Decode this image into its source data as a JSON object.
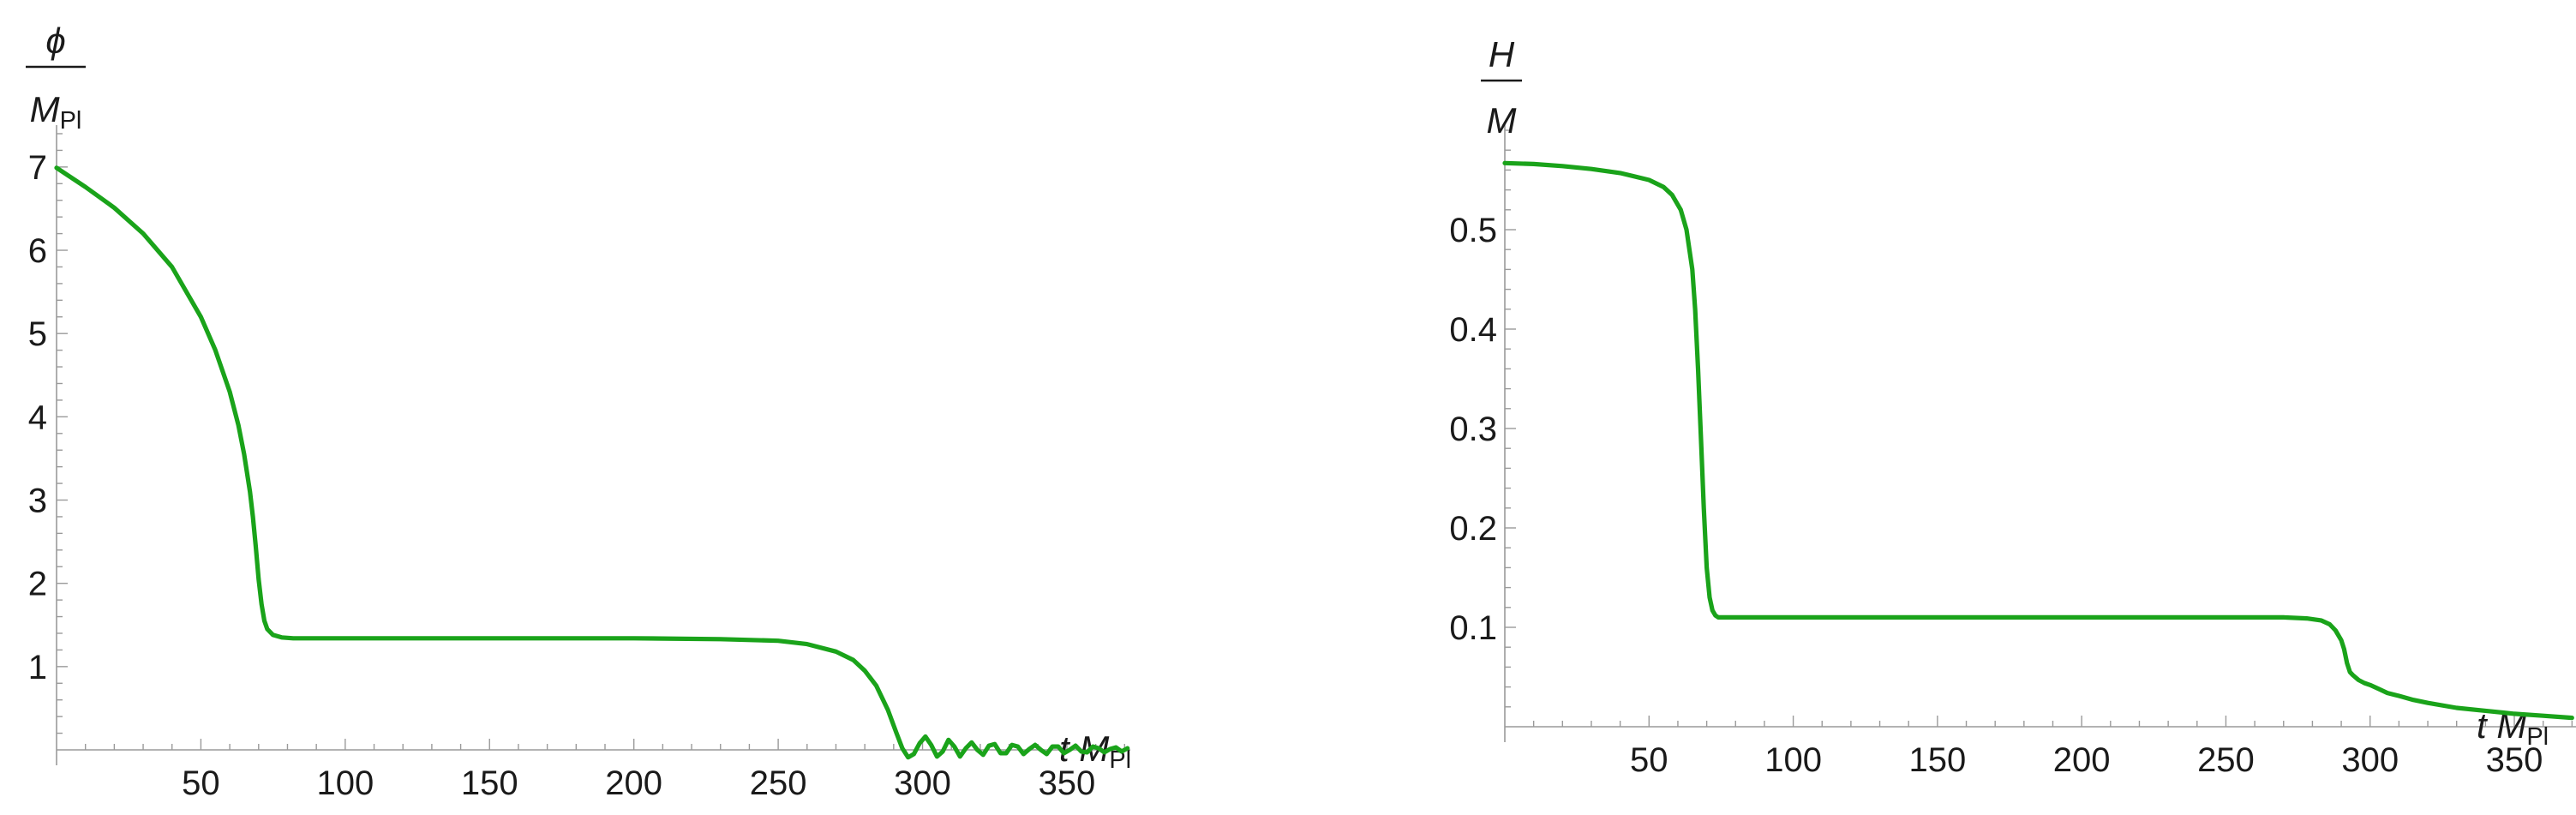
{
  "colors": {
    "curve": "#1aa31a",
    "axis": "#9a9a9a",
    "text": "#1a1a1a"
  },
  "chart_data": [
    {
      "type": "line",
      "title": "",
      "ylabel": {
        "numerator": "ϕ",
        "denominator": "M",
        "denominator_sub": "Pl"
      },
      "xlabel": {
        "main": "t M",
        "sub": "Pl"
      },
      "xlim": [
        0,
        380
      ],
      "ylim": [
        0,
        7.4
      ],
      "xticks": [
        50,
        100,
        150,
        200,
        250,
        300,
        350
      ],
      "xtick_labels": [
        "50",
        "100",
        "150",
        "200",
        "250",
        "300",
        "350"
      ],
      "yticks": [
        1,
        2,
        3,
        4,
        5,
        6,
        7
      ],
      "ytick_labels": [
        "1",
        "2",
        "3",
        "4",
        "5",
        "6",
        "7"
      ],
      "grid": false,
      "series": [
        {
          "color": "#1aa31a",
          "x": [
            0,
            10,
            20,
            30,
            40,
            50,
            55,
            60,
            63,
            65,
            67,
            68,
            69,
            70,
            71,
            72,
            73,
            75,
            78,
            82,
            90,
            100,
            150,
            200,
            230,
            250,
            260,
            270,
            276,
            280,
            284,
            288,
            291,
            293,
            295,
            297,
            299,
            301,
            303,
            305,
            307,
            309,
            311,
            313,
            315,
            317,
            319,
            321,
            323,
            325,
            327,
            329,
            331,
            333,
            335,
            337,
            339,
            341,
            343,
            345,
            347,
            349,
            351,
            353,
            355,
            357,
            359,
            361,
            363,
            365,
            367,
            369,
            371
          ],
          "y": [
            6.99,
            6.76,
            6.51,
            6.2,
            5.8,
            5.2,
            4.8,
            4.3,
            3.9,
            3.55,
            3.1,
            2.8,
            2.45,
            2.05,
            1.75,
            1.55,
            1.45,
            1.38,
            1.35,
            1.34,
            1.34,
            1.34,
            1.34,
            1.34,
            1.33,
            1.31,
            1.27,
            1.18,
            1.08,
            0.95,
            0.77,
            0.48,
            0.2,
            0.02,
            -0.09,
            -0.05,
            0.08,
            0.16,
            0.06,
            -0.08,
            -0.02,
            0.12,
            0.04,
            -0.08,
            0.02,
            0.09,
            0.0,
            -0.06,
            0.05,
            0.07,
            -0.04,
            -0.04,
            0.06,
            0.04,
            -0.05,
            0.01,
            0.06,
            0.0,
            -0.05,
            0.04,
            0.04,
            -0.04,
            0.0,
            0.05,
            -0.02,
            -0.03,
            0.04,
            0.02,
            -0.03,
            0.01,
            0.03,
            -0.02,
            0.02
          ]
        }
      ]
    },
    {
      "type": "line",
      "title": "",
      "ylabel": {
        "numerator": "H",
        "denominator": "M",
        "denominator_sub": ""
      },
      "xlabel": {
        "main": "t M",
        "sub": "Pl"
      },
      "xlim": [
        0,
        380
      ],
      "ylim": [
        0,
        0.6
      ],
      "xticks": [
        50,
        100,
        150,
        200,
        250,
        300,
        350
      ],
      "xtick_labels": [
        "50",
        "100",
        "150",
        "200",
        "250",
        "300",
        "350"
      ],
      "yticks": [
        0.1,
        0.2,
        0.3,
        0.4,
        0.5
      ],
      "ytick_labels": [
        "0.1",
        "0.2",
        "0.3",
        "0.4",
        "0.5"
      ],
      "grid": false,
      "series": [
        {
          "color": "#1aa31a",
          "x": [
            0,
            10,
            20,
            30,
            40,
            50,
            55,
            58,
            61,
            63,
            65,
            66,
            67,
            68,
            69,
            70,
            71,
            72,
            73,
            74,
            76,
            80,
            90,
            100,
            150,
            200,
            250,
            270,
            278,
            283,
            286,
            288,
            290,
            291,
            292,
            293,
            294,
            296,
            298,
            300,
            303,
            306,
            310,
            315,
            320,
            330,
            340,
            350,
            360,
            370
          ],
          "y": [
            0.567,
            0.566,
            0.564,
            0.561,
            0.557,
            0.55,
            0.543,
            0.535,
            0.52,
            0.5,
            0.46,
            0.42,
            0.36,
            0.29,
            0.22,
            0.16,
            0.13,
            0.117,
            0.112,
            0.11,
            0.11,
            0.11,
            0.11,
            0.11,
            0.11,
            0.11,
            0.11,
            0.11,
            0.109,
            0.107,
            0.103,
            0.097,
            0.087,
            0.078,
            0.064,
            0.055,
            0.052,
            0.047,
            0.044,
            0.042,
            0.038,
            0.034,
            0.031,
            0.027,
            0.024,
            0.019,
            0.016,
            0.013,
            0.011,
            0.009
          ]
        }
      ]
    }
  ]
}
